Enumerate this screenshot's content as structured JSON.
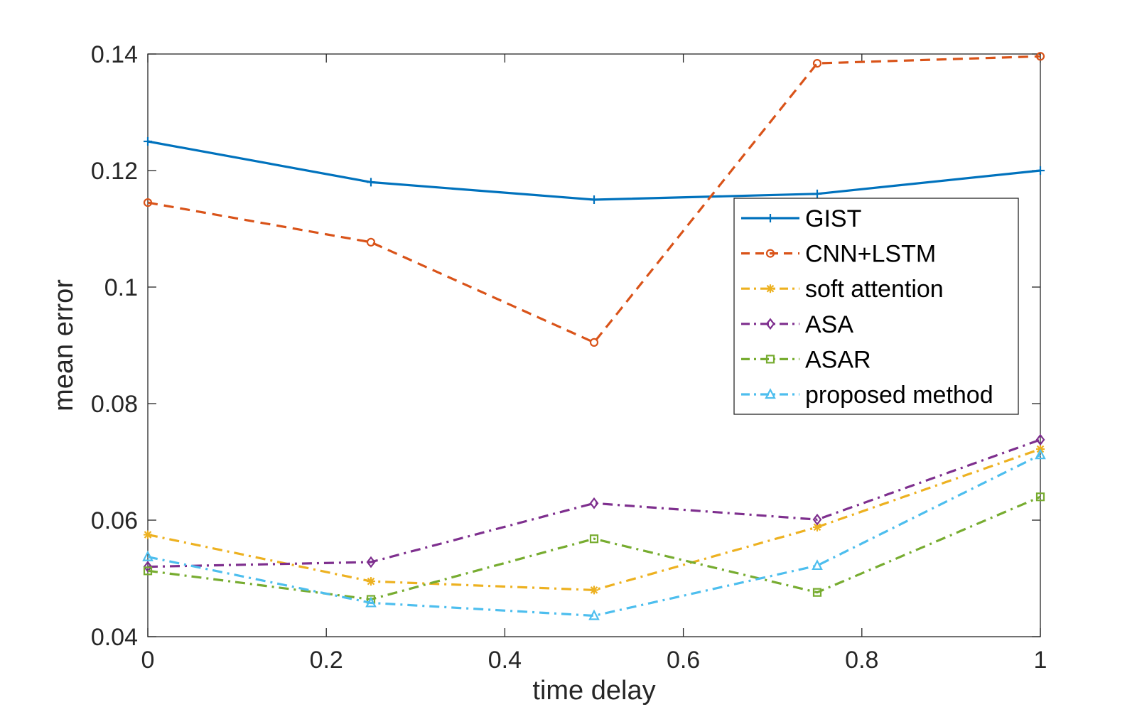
{
  "chart_data": {
    "type": "line",
    "xlabel": "time delay",
    "ylabel": "mean error",
    "xlim": [
      0,
      1
    ],
    "ylim": [
      0.04,
      0.14
    ],
    "xticks": [
      0,
      0.2,
      0.4,
      0.6,
      0.8,
      1
    ],
    "xtick_labels": [
      "0",
      "0.2",
      "0.4",
      "0.6",
      "0.8",
      "1"
    ],
    "yticks": [
      0.04,
      0.06,
      0.08,
      0.1,
      0.12,
      0.14
    ],
    "ytick_labels": [
      "0.04",
      "0.06",
      "0.08",
      "0.1",
      "0.12",
      "0.14"
    ],
    "grid": false,
    "legend_position": "right",
    "x": [
      0,
      0.25,
      0.5,
      0.75,
      1
    ],
    "series": [
      {
        "name": "GIST",
        "values": [
          0.125,
          0.118,
          0.115,
          0.116,
          0.12
        ],
        "color": "#0072BD",
        "dash": "solid",
        "marker": "plus"
      },
      {
        "name": "CNN+LSTM",
        "values": [
          0.1145,
          0.1077,
          0.0905,
          0.1384,
          0.1396
        ],
        "color": "#D95319",
        "dash": "dashed",
        "marker": "circle"
      },
      {
        "name": "soft attention",
        "values": [
          0.0575,
          0.0495,
          0.048,
          0.0588,
          0.0722
        ],
        "color": "#EDB120",
        "dash": "dashdot",
        "marker": "asterisk"
      },
      {
        "name": "ASA",
        "values": [
          0.052,
          0.0528,
          0.0629,
          0.0601,
          0.0738
        ],
        "color": "#7E2F8E",
        "dash": "dashdot",
        "marker": "diamond"
      },
      {
        "name": "ASAR",
        "values": [
          0.0513,
          0.0464,
          0.0568,
          0.0476,
          0.064
        ],
        "color": "#77AC30",
        "dash": "dashdot",
        "marker": "square"
      },
      {
        "name": "proposed method",
        "values": [
          0.0537,
          0.0458,
          0.0436,
          0.0522,
          0.0712
        ],
        "color": "#4DBEEE",
        "dash": "dashdot",
        "marker": "triangle"
      }
    ]
  }
}
